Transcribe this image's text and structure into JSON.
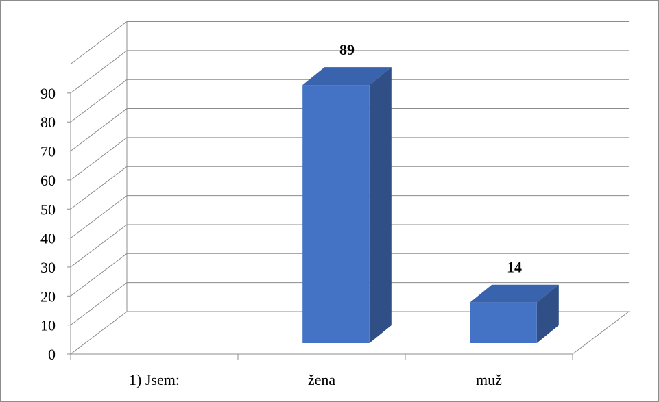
{
  "chart_data": {
    "type": "bar",
    "style": "3d-column",
    "categories": [
      "1) Jsem:",
      "žena",
      "muž"
    ],
    "series": [
      {
        "values": [
          null,
          89,
          14
        ],
        "data_labels": [
          "",
          "89",
          "14"
        ],
        "color": "#4472C4"
      }
    ],
    "ylim": [
      0,
      100
    ],
    "yticks": [
      "0",
      "10",
      "20",
      "30",
      "40",
      "50",
      "60",
      "70",
      "80",
      "90"
    ],
    "grid": true,
    "legend": "none",
    "title": "",
    "xlabel": "",
    "ylabel": ""
  },
  "colors": {
    "bar_front": "#4472C4",
    "bar_side": "#2F4F86",
    "bar_top": "#3A63AE",
    "gridline": "#8c8c8c",
    "frame_border": "#8c8c8c"
  }
}
